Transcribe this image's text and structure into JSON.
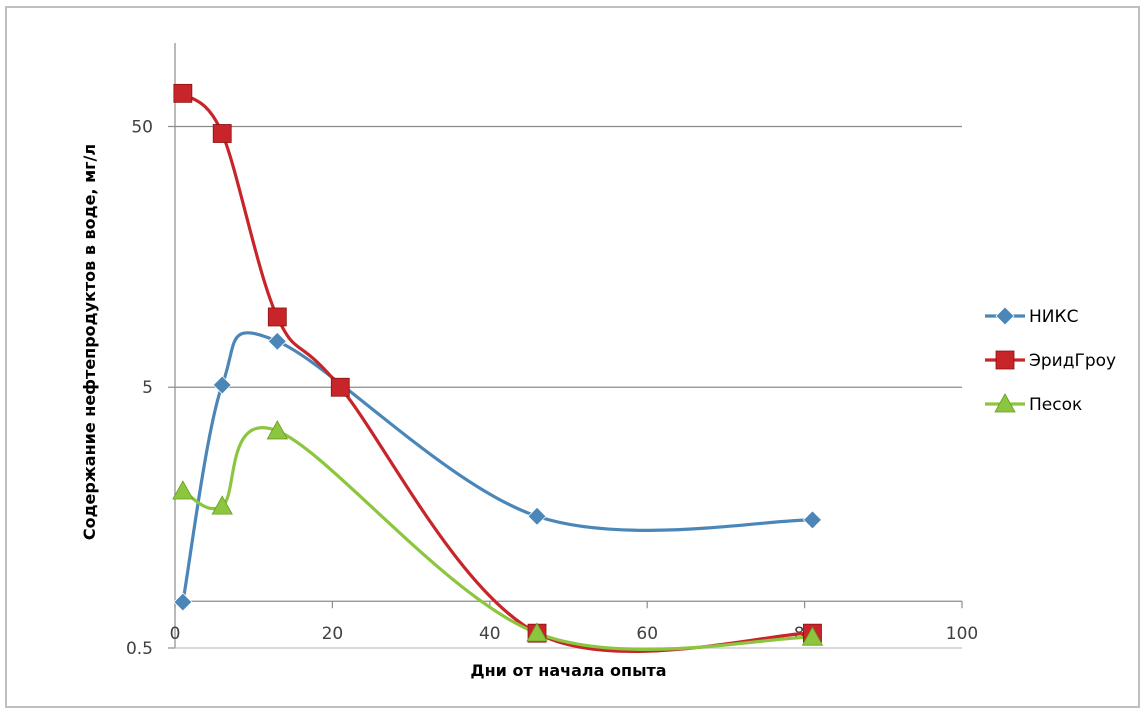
{
  "chart_data": {
    "type": "line",
    "title": "",
    "xlabel": "Дни от начала опыта",
    "ylabel": "Содержание нефтепродуктов в воде, мг/л",
    "xlim": [
      0,
      100
    ],
    "x_ticks": [
      "0",
      "20",
      "40",
      "60",
      "80",
      "100"
    ],
    "ylim": [
      0.5,
      100
    ],
    "y_scale": "log",
    "y_ticks": [
      "0.5",
      "5",
      "50"
    ],
    "grid": "horizontal",
    "legend_position": "right",
    "series": [
      {
        "name": "НИКС",
        "color": "#4a86b8",
        "marker": "diamond",
        "points": [
          [
            1,
            0.75
          ],
          [
            6,
            5.1
          ],
          [
            13,
            7.5
          ],
          [
            46,
            1.6
          ],
          [
            81,
            1.55
          ]
        ]
      },
      {
        "name": "ЭридГроу",
        "color": "#c8252b",
        "marker": "square",
        "points": [
          [
            1,
            67
          ],
          [
            6,
            47
          ],
          [
            13,
            9.3
          ],
          [
            21,
            5.0
          ],
          [
            46,
            0.57
          ],
          [
            81,
            0.57
          ]
        ]
      },
      {
        "name": "Песок",
        "color": "#8cc63f",
        "marker": "triangle",
        "points": [
          [
            1,
            2.0
          ],
          [
            6,
            1.75
          ],
          [
            13,
            3.4
          ],
          [
            46,
            0.57
          ],
          [
            81,
            0.55
          ]
        ]
      }
    ]
  }
}
